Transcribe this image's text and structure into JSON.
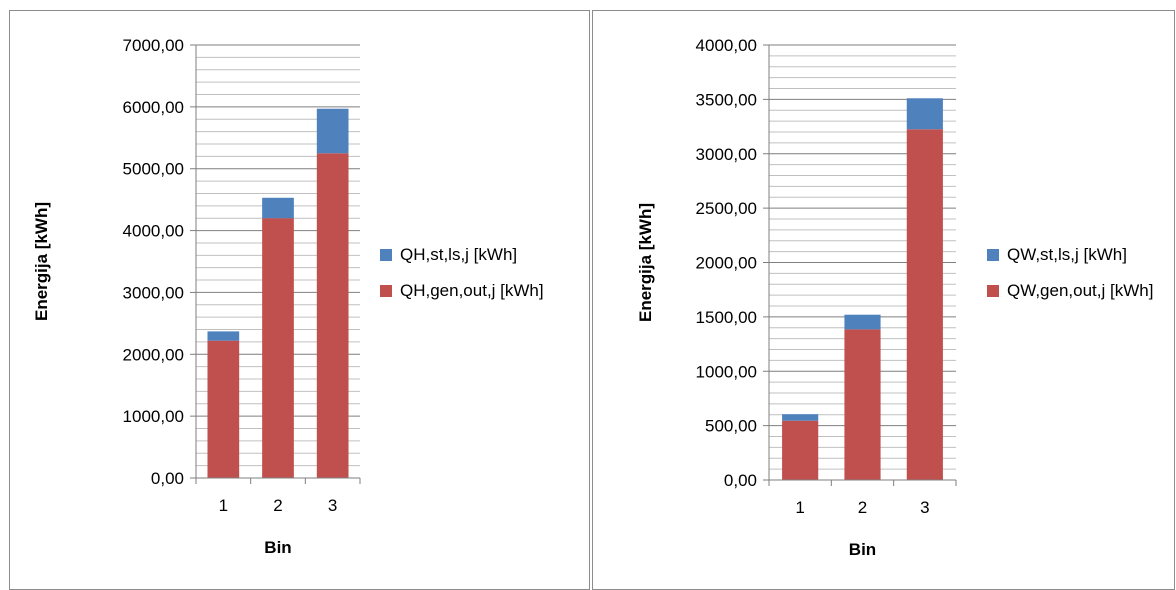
{
  "chart_data": [
    {
      "type": "bar",
      "stacked": true,
      "categories": [
        "1",
        "2",
        "3"
      ],
      "series": [
        {
          "name": "QH,gen,out,j [kWh]",
          "values": [
            2220,
            4200,
            5250
          ],
          "color": "#c0504d"
        },
        {
          "name": "QH,st,ls,j [kWh]",
          "values": [
            150,
            330,
            720
          ],
          "color": "#4f81bd"
        }
      ],
      "ylim": [
        0,
        7000
      ],
      "yticks": [
        "0,00",
        "1000,00",
        "2000,00",
        "3000,00",
        "4000,00",
        "5000,00",
        "6000,00",
        "7000,00"
      ],
      "minor_step": 200,
      "xlabel": "Bin",
      "ylabel": "Energija [kWh]",
      "grid": true,
      "legend_position": "right"
    },
    {
      "type": "bar",
      "stacked": true,
      "categories": [
        "1",
        "2",
        "3"
      ],
      "series": [
        {
          "name": "QW,gen,out,j [kWh]",
          "values": [
            545,
            1385,
            3225
          ],
          "color": "#c0504d"
        },
        {
          "name": "QW,st,ls,j [kWh]",
          "values": [
            60,
            135,
            285
          ],
          "color": "#4f81bd"
        }
      ],
      "ylim": [
        0,
        4000
      ],
      "yticks": [
        "0,00",
        "500,00",
        "1000,00",
        "1500,00",
        "2000,00",
        "2500,00",
        "3000,00",
        "3500,00",
        "4000,00"
      ],
      "minor_step": 100,
      "xlabel": "Bin",
      "ylabel": "Energija [kWh]",
      "grid": true,
      "legend_position": "right"
    }
  ]
}
